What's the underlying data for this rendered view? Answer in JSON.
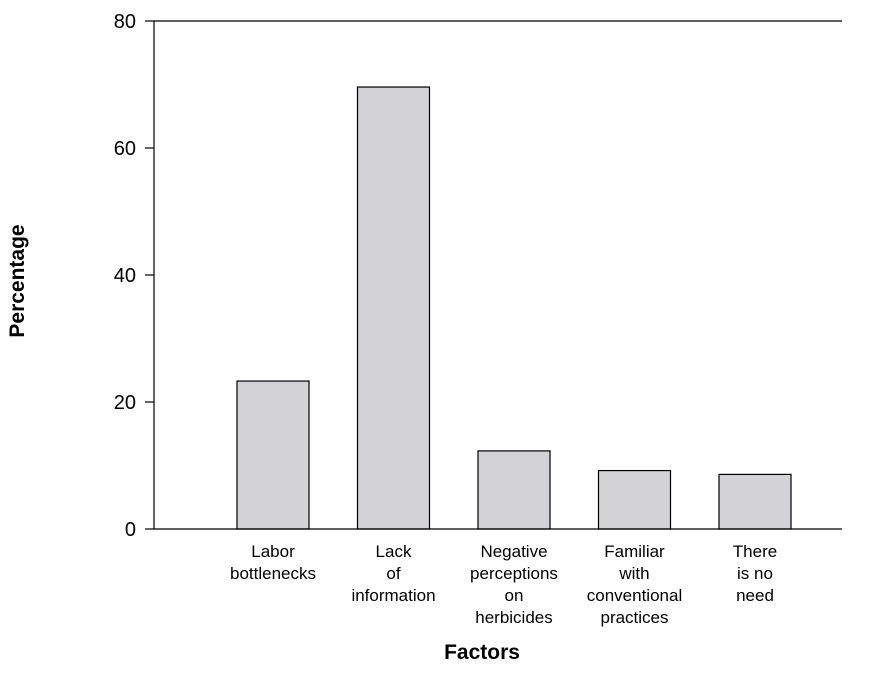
{
  "chart_data": {
    "type": "bar",
    "categories": [
      [
        "Labor",
        "bottlenecks"
      ],
      [
        "Lack",
        "of",
        "information"
      ],
      [
        "Negative",
        "perceptions",
        "on",
        "herbicides"
      ],
      [
        "Familiar",
        "with",
        "conventional",
        "practices"
      ],
      [
        "There",
        "is no",
        "need"
      ]
    ],
    "values": [
      23.3,
      69.6,
      12.3,
      9.2,
      8.6
    ],
    "xlabel": "Factors",
    "ylabel": "Percentage",
    "ylim": [
      0,
      80
    ],
    "yticks": [
      "0",
      "20",
      "40",
      "60",
      "80"
    ],
    "grid": false,
    "legend": "none",
    "bar_color": "#d3d3d5",
    "bar_edge_color": "#000000"
  }
}
